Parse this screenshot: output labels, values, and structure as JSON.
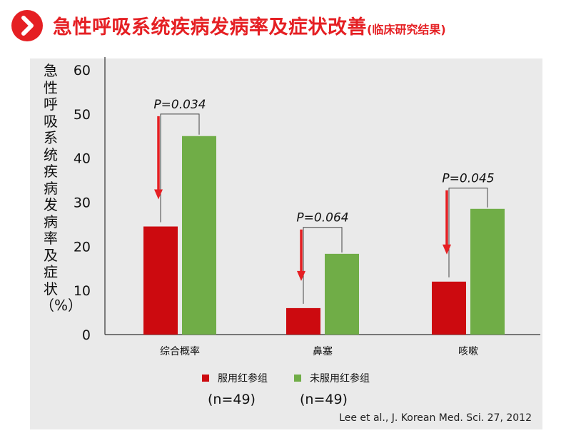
{
  "header": {
    "icon": "chevron-right-icon",
    "title": "急性呼吸系统疾病发病率及症状改善",
    "subtitle": "(临床研究结果)",
    "accent": "#e51f23"
  },
  "chart_data": {
    "type": "bar",
    "title": "",
    "ylabel": "急性呼吸系统疾病发病率及症状（%）",
    "xlabel": "",
    "ylim": [
      0,
      60
    ],
    "yticks": [
      "0",
      "10",
      "20",
      "30",
      "40",
      "50",
      "60"
    ],
    "categories": [
      "综合概率",
      "鼻塞",
      "咳嗽"
    ],
    "series": [
      {
        "name": "服用红参组",
        "color": "#cc0a0f",
        "values": [
          24.5,
          6,
          12
        ]
      },
      {
        "name": "未服用红参组",
        "color": "#70ad47",
        "values": [
          45,
          18.3,
          28.5
        ]
      }
    ],
    "annotations": [
      {
        "category": "综合概率",
        "text": "P=0.034",
        "bracket_y": 50
      },
      {
        "category": "鼻塞",
        "text": "P=0.064",
        "bracket_y": 24.3
      },
      {
        "category": "咳嗽",
        "text": "P=0.045",
        "bracket_y": 33.2
      }
    ],
    "arrow_color": "#e51f23",
    "legend": [
      {
        "label": "服用红参组",
        "n": "(n=49)"
      },
      {
        "label": "未服用红参组",
        "n": "(n=49)"
      }
    ],
    "legend_position": "bottom",
    "grid": false
  },
  "citation": "Lee et al., J. Korean Med. Sci. 27, 2012"
}
